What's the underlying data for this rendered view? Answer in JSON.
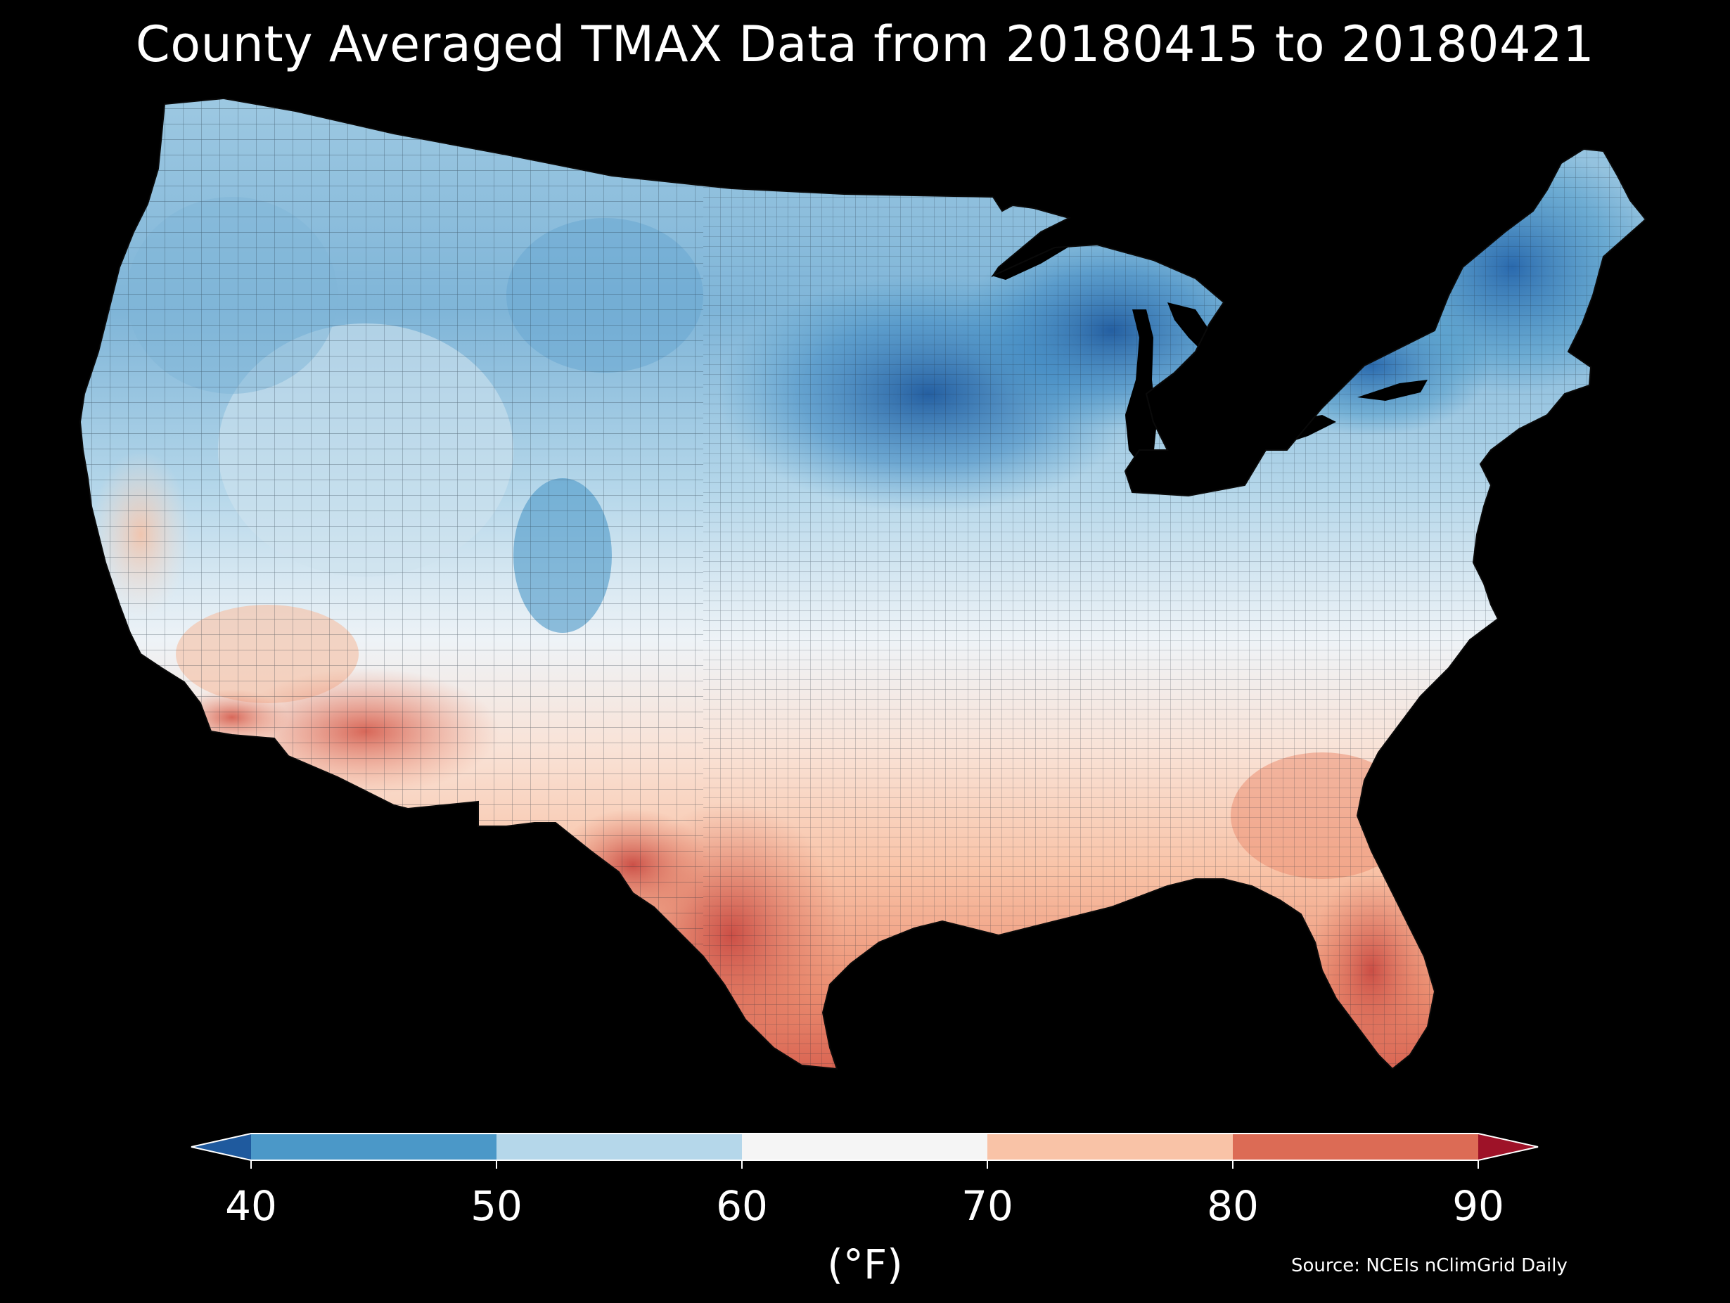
{
  "title": "County Averaged TMAX Data from 20180415 to 20180421",
  "source": "Source: NCEIs nClimGrid Daily",
  "colorbar": {
    "unit_label": "(°F)",
    "ticks": [
      "40",
      "50",
      "60",
      "70",
      "80",
      "90"
    ],
    "bins": [
      {
        "from": 40,
        "to": 50,
        "color": "#4b98c8"
      },
      {
        "from": 50,
        "to": 60,
        "color": "#b5d7ea"
      },
      {
        "from": 60,
        "to": 70,
        "color": "#f5f5f5"
      },
      {
        "from": 70,
        "to": 80,
        "color": "#f9c3a7"
      },
      {
        "from": 80,
        "to": 90,
        "color": "#dc6b55"
      }
    ],
    "under_color": "#1f5a9e",
    "over_color": "#9e1228",
    "extend": "both"
  },
  "map": {
    "region": "Contiguous United States",
    "unit": "counties",
    "colors": {
      "deep_blue": "#2c6fb5",
      "blue": "#4b98c8",
      "light_blue": "#b5d7ea",
      "white": "#f5f5f5",
      "light_red": "#f9c3a7",
      "red": "#dc6b55",
      "deep_red": "#c43e3c",
      "background": "#000000",
      "border": "#222222"
    }
  }
}
